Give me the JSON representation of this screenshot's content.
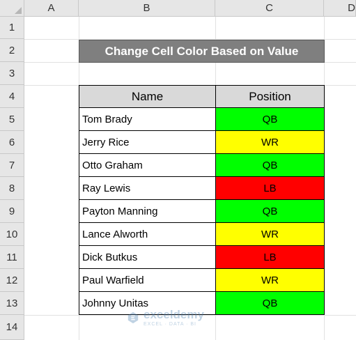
{
  "columns": [
    "A",
    "B",
    "C",
    "D"
  ],
  "rows": [
    "1",
    "2",
    "3",
    "4",
    "5",
    "6",
    "7",
    "8",
    "9",
    "10",
    "11",
    "12",
    "13",
    "14"
  ],
  "title": "Change Cell Color Based on Value",
  "table": {
    "headers": {
      "name": "Name",
      "position": "Position"
    },
    "records": [
      {
        "name": "Tom Brady",
        "position": "QB"
      },
      {
        "name": "Jerry Rice",
        "position": "WR"
      },
      {
        "name": "Otto Graham",
        "position": "QB"
      },
      {
        "name": "Ray Lewis",
        "position": "LB"
      },
      {
        "name": "Payton Manning",
        "position": "QB"
      },
      {
        "name": "Lance Alworth",
        "position": "WR"
      },
      {
        "name": "Dick Butkus",
        "position": "LB"
      },
      {
        "name": "Paul Warfield",
        "position": "WR"
      },
      {
        "name": "Johnny Unitas",
        "position": "QB"
      }
    ]
  },
  "position_colors": {
    "QB": "#00ff00",
    "WR": "#ffff00",
    "LB": "#ff0000"
  },
  "watermark": {
    "name": "exceldemy",
    "tagline": "EXCEL · DATA · BI"
  }
}
